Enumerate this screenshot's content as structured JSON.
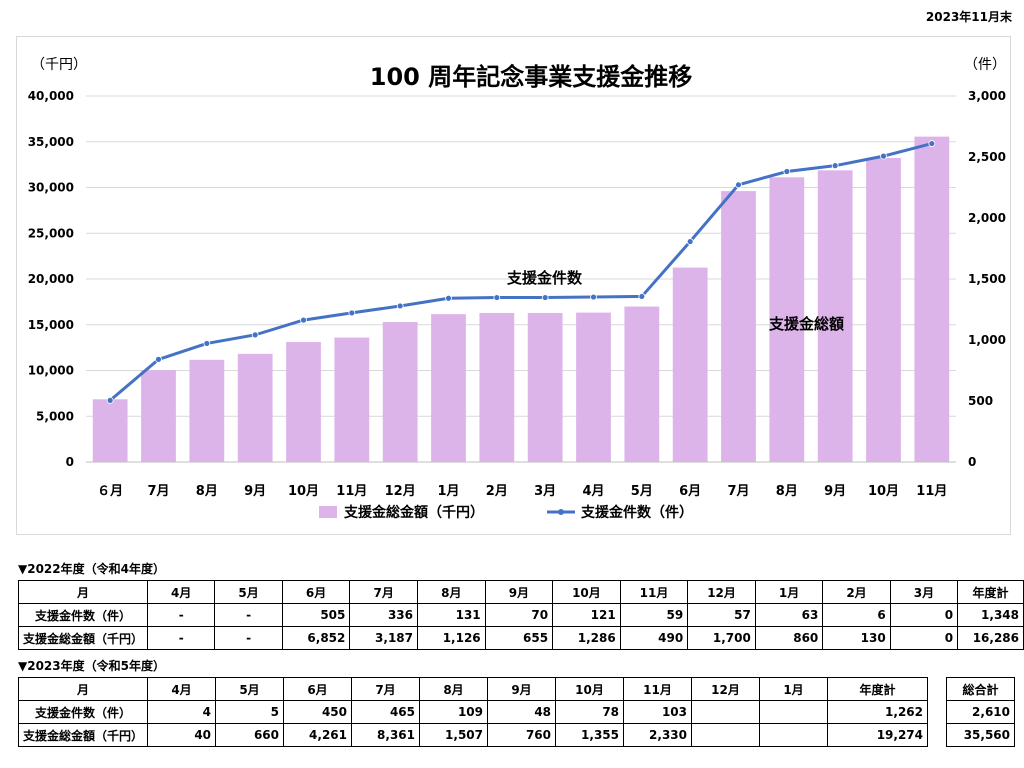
{
  "as_of": "2023年11月末",
  "chart_data": {
    "type": "bar+line",
    "title": "100 周年記念事業支援金推移",
    "left_unit": "（千円）",
    "right_unit": "（件）",
    "categories": [
      "６月",
      "7月",
      "8月",
      "9月",
      "10月",
      "11月",
      "12月",
      "1月",
      "2月",
      "3月",
      "4月",
      "5月",
      "6月",
      "7月",
      "8月",
      "9月",
      "10月",
      "11月"
    ],
    "left_axis": {
      "min": 0,
      "max": 40000,
      "ticks": [
        "0",
        "5,000",
        "10,000",
        "15,000",
        "20,000",
        "25,000",
        "30,000",
        "35,000",
        "40,000"
      ]
    },
    "right_axis": {
      "min": 0,
      "max": 3000,
      "ticks": [
        "0",
        "500",
        "1,000",
        "1,500",
        "2,000",
        "2,500",
        "3,000"
      ]
    },
    "series": [
      {
        "name": "支援金総金額（千円）",
        "kind": "bar",
        "axis": "left",
        "color": "#dcb4ea",
        "values": [
          6852,
          10039,
          11165,
          11820,
          13106,
          13596,
          15296,
          16156,
          16286,
          16286,
          16326,
          16986,
          21247,
          29608,
          31115,
          31875,
          33230,
          35560
        ]
      },
      {
        "name": "支援金件数（件）",
        "kind": "line",
        "axis": "right",
        "color": "#4472c4",
        "values": [
          505,
          841,
          972,
          1042,
          1163,
          1222,
          1279,
          1342,
          1348,
          1348,
          1352,
          1357,
          1807,
          2272,
          2381,
          2429,
          2507,
          2610
        ]
      }
    ],
    "annotations": [
      "支援金件数",
      "支援金総額"
    ],
    "grid": true,
    "legend": "bottom"
  },
  "fy2022": {
    "label": "▼2022年度（令和4年度）",
    "header": [
      "月",
      "4月",
      "5月",
      "6月",
      "7月",
      "8月",
      "9月",
      "10月",
      "11月",
      "12月",
      "1月",
      "2月",
      "3月",
      "年度計"
    ],
    "rows": [
      [
        "支援金件数（件）",
        "-",
        "-",
        "505",
        "336",
        "131",
        "70",
        "121",
        "59",
        "57",
        "63",
        "6",
        "0",
        "1,348"
      ],
      [
        "支援金総金額（千円）",
        "-",
        "-",
        "6,852",
        "3,187",
        "1,126",
        "655",
        "1,286",
        "490",
        "1,700",
        "860",
        "130",
        "0",
        "16,286"
      ]
    ]
  },
  "fy2023": {
    "label": "▼2023年度（令和5年度）",
    "header": [
      "月",
      "4月",
      "5月",
      "6月",
      "7月",
      "8月",
      "9月",
      "10月",
      "11月",
      "12月",
      "1月",
      "年度計"
    ],
    "rows": [
      [
        "支援金件数（件）",
        "4",
        "5",
        "450",
        "465",
        "109",
        "48",
        "78",
        "103",
        "",
        "",
        "1,262"
      ],
      [
        "支援金総金額（千円）",
        "40",
        "660",
        "4,261",
        "8,361",
        "1,507",
        "760",
        "1,355",
        "2,330",
        "",
        "",
        "19,274"
      ]
    ],
    "grand_total_header": "総合計",
    "grand_totals": [
      "2,610",
      "35,560"
    ]
  }
}
